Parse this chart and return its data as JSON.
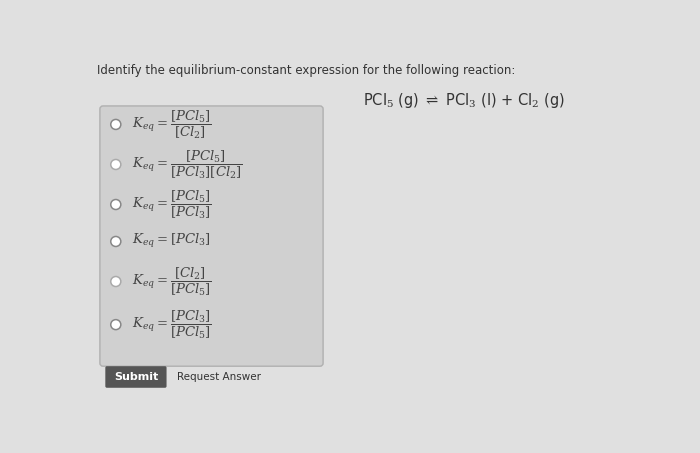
{
  "page_bg": "#e0e0e0",
  "box_bg": "#d0d0d0",
  "box_border": "#aaaaaa",
  "question_text": "Identify the equilibrium-constant expression for the following reaction:",
  "options": [
    {
      "expr": "$K_{eq} = \\dfrac{[PCl_5]}{[Cl_2]}$"
    },
    {
      "expr": "$K_{eq} = \\dfrac{[PCl_5]}{[PCl_3][Cl_2]}$"
    },
    {
      "expr": "$K_{eq} = \\dfrac{[PCl_5]}{[PCl_3]}$"
    },
    {
      "expr": "$K_{eq} = [PCl_3]$"
    },
    {
      "expr": "$K_{eq} = \\dfrac{[Cl_2]}{[PCl_5]}$"
    },
    {
      "expr": "$K_{eq} = \\dfrac{[PCl_3]}{[PCl_5]}$"
    }
  ],
  "submit_label": "Submit",
  "request_label": "Request Answer",
  "text_color": "#444444",
  "button_bg": "#555555",
  "circle_colors": [
    "#888888",
    "#aaaaaa",
    "#888888",
    "#888888",
    "#aaaaaa",
    "#888888"
  ]
}
